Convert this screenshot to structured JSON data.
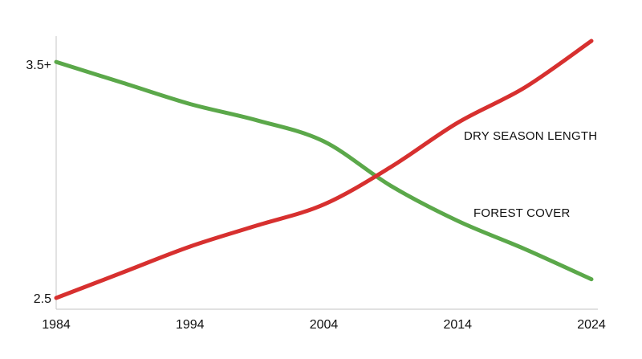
{
  "chart_data": {
    "type": "line",
    "title": "",
    "xlabel": "",
    "ylabel": "",
    "x": [
      1984,
      1989,
      1994,
      1999,
      2004,
      2009,
      2014,
      2019,
      2024
    ],
    "xlim": [
      1984,
      2024
    ],
    "ylim": [
      2.5,
      3.5
    ],
    "x_ticks": [
      "1984",
      "1994",
      "2004",
      "2014",
      "2024"
    ],
    "y_ticks": [
      {
        "value": 2.5,
        "label": "2.5"
      },
      {
        "value": 3.5,
        "label": "3.5+"
      }
    ],
    "grid": false,
    "series": [
      {
        "name": "FOREST COVER",
        "color": "#5ba84a",
        "values": [
          3.51,
          3.42,
          3.33,
          3.26,
          3.17,
          2.98,
          2.83,
          2.71,
          2.58
        ]
      },
      {
        "name": "DRY SEASON LENGTH",
        "color": "#d7302f",
        "values": [
          2.5,
          2.61,
          2.72,
          2.81,
          2.9,
          3.06,
          3.25,
          3.4,
          3.6
        ]
      }
    ]
  }
}
